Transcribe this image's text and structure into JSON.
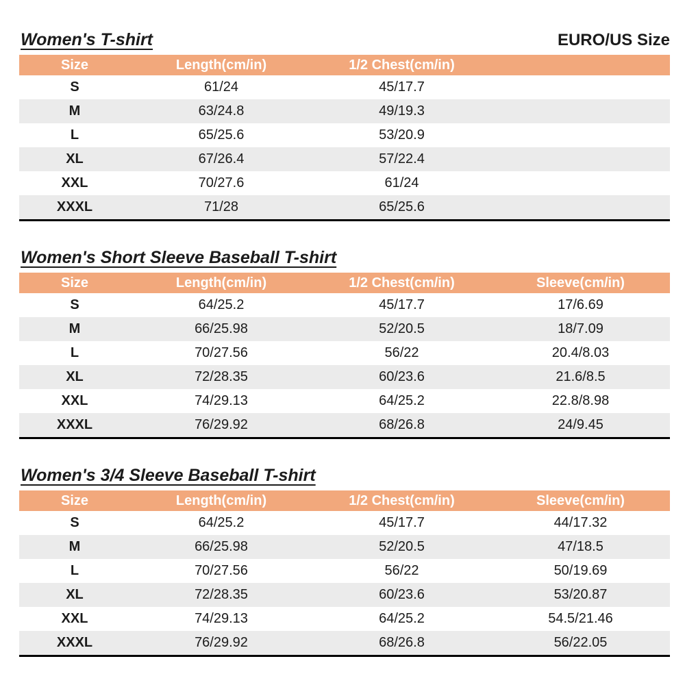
{
  "page": {
    "top_right_label": "EURO/US Size"
  },
  "colors": {
    "header_bg": "#F2A87C",
    "header_text": "#FFFFFF",
    "row_alt_bg": "#EBEBEB",
    "row_bg": "#FFFFFF",
    "text": "#1B1B1B",
    "table_bottom_border": "#000000"
  },
  "tables": [
    {
      "title": "Women's T-shirt",
      "headers": [
        "Size",
        "Length(cm/in)",
        "1/2 Chest(cm/in)",
        ""
      ],
      "rows": [
        [
          "S",
          "61/24",
          "45/17.7",
          ""
        ],
        [
          "M",
          "63/24.8",
          "49/19.3",
          ""
        ],
        [
          "L",
          "65/25.6",
          "53/20.9",
          ""
        ],
        [
          "XL",
          "67/26.4",
          "57/22.4",
          ""
        ],
        [
          "XXL",
          "70/27.6",
          "61/24",
          ""
        ],
        [
          "XXXL",
          "71/28",
          "65/25.6",
          ""
        ]
      ]
    },
    {
      "title": "Women's Short Sleeve Baseball T-shirt",
      "headers": [
        "Size",
        "Length(cm/in)",
        "1/2 Chest(cm/in)",
        "Sleeve(cm/in)"
      ],
      "rows": [
        [
          "S",
          "64/25.2",
          "45/17.7",
          "17/6.69"
        ],
        [
          "M",
          "66/25.98",
          "52/20.5",
          "18/7.09"
        ],
        [
          "L",
          "70/27.56",
          "56/22",
          "20.4/8.03"
        ],
        [
          "XL",
          "72/28.35",
          "60/23.6",
          "21.6/8.5"
        ],
        [
          "XXL",
          "74/29.13",
          "64/25.2",
          "22.8/8.98"
        ],
        [
          "XXXL",
          "76/29.92",
          "68/26.8",
          "24/9.45"
        ]
      ]
    },
    {
      "title": "Women's 3/4 Sleeve Baseball T-shirt",
      "headers": [
        "Size",
        "Length(cm/in)",
        "1/2 Chest(cm/in)",
        "Sleeve(cm/in)"
      ],
      "rows": [
        [
          "S",
          "64/25.2",
          "45/17.7",
          "44/17.32"
        ],
        [
          "M",
          "66/25.98",
          "52/20.5",
          "47/18.5"
        ],
        [
          "L",
          "70/27.56",
          "56/22",
          "50/19.69"
        ],
        [
          "XL",
          "72/28.35",
          "60/23.6",
          "53/20.87"
        ],
        [
          "XXL",
          "74/29.13",
          "64/25.2",
          "54.5/21.46"
        ],
        [
          "XXXL",
          "76/29.92",
          "68/26.8",
          "56/22.05"
        ]
      ]
    }
  ]
}
